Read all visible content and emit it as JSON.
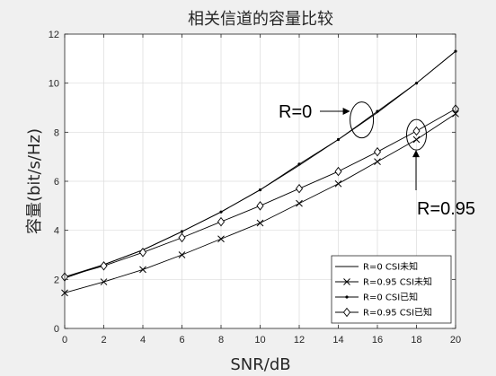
{
  "chart_data": {
    "type": "line",
    "title": "相关信道的容量比较",
    "xlabel": "SNR/dB",
    "ylabel": "容量(bit/s/Hz)",
    "xlim": [
      0,
      20
    ],
    "ylim": [
      0,
      12
    ],
    "xticks": [
      0,
      2,
      4,
      6,
      8,
      10,
      12,
      14,
      16,
      18,
      20
    ],
    "yticks": [
      0,
      2,
      4,
      6,
      8,
      10,
      12
    ],
    "grid": true,
    "legend_position": "bottom-right",
    "x": [
      0,
      2,
      4,
      6,
      8,
      10,
      12,
      14,
      16,
      18,
      20
    ],
    "series": [
      {
        "name": "R=0 CSI未知",
        "marker": "none",
        "values": [
          2.05,
          2.6,
          3.2,
          3.95,
          4.75,
          5.65,
          6.65,
          7.7,
          8.8,
          10.0,
          11.3
        ]
      },
      {
        "name": "R=0.95 CSI未知",
        "marker": "x",
        "values": [
          1.45,
          1.9,
          2.4,
          3.0,
          3.65,
          4.3,
          5.1,
          5.9,
          6.8,
          7.7,
          8.75
        ]
      },
      {
        "name": "R=0 CSI已知",
        "marker": "dot",
        "values": [
          2.1,
          2.6,
          3.2,
          3.95,
          4.75,
          5.65,
          6.7,
          7.7,
          8.85,
          10.0,
          11.3
        ]
      },
      {
        "name": "R=0.95 CSI已知",
        "marker": "diamond",
        "values": [
          2.1,
          2.55,
          3.1,
          3.7,
          4.35,
          5.0,
          5.7,
          6.4,
          7.2,
          8.05,
          8.95
        ]
      }
    ],
    "annotations": [
      {
        "text": "R=0",
        "points_to": [
          15.2,
          8.5
        ]
      },
      {
        "text": "R=0.95",
        "points_to": [
          18.0,
          7.9
        ]
      }
    ]
  }
}
